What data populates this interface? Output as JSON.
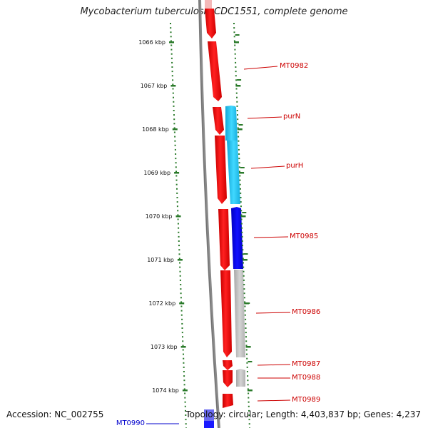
{
  "title": "Mycobacterium tuberculosis CDC1551, complete genome",
  "accession": "Accession: NC_002755",
  "stats": "Topology: circular; Length: 4,403,837 bp; Genes: 4,237",
  "colors": {
    "forward_gene": "#ff0000",
    "reverse_gene_cyan": "#22ccf0",
    "reverse_gene_blue": "#0000ee",
    "reverse_gene_gray": "#bbbbbb",
    "backbone": "#777777",
    "tick": "#2a7a2a",
    "label_red": "#cc0000",
    "label_blue": "#0000cc"
  },
  "ticks": [
    "1066 kbp",
    "1067 kbp",
    "1068 kbp",
    "1069 kbp",
    "1070 kbp",
    "1071 kbp",
    "1072 kbp",
    "1073 kbp",
    "1074 kbp"
  ],
  "gene_labels": [
    {
      "name": "MT0982",
      "color": "red"
    },
    {
      "name": "purN",
      "color": "red"
    },
    {
      "name": "purH",
      "color": "red"
    },
    {
      "name": "MT0985",
      "color": "red"
    },
    {
      "name": "MT0986",
      "color": "red"
    },
    {
      "name": "MT0987",
      "color": "red"
    },
    {
      "name": "MT0988",
      "color": "red"
    },
    {
      "name": "MT0989",
      "color": "red"
    },
    {
      "name": "MT0990",
      "color": "blue"
    }
  ]
}
